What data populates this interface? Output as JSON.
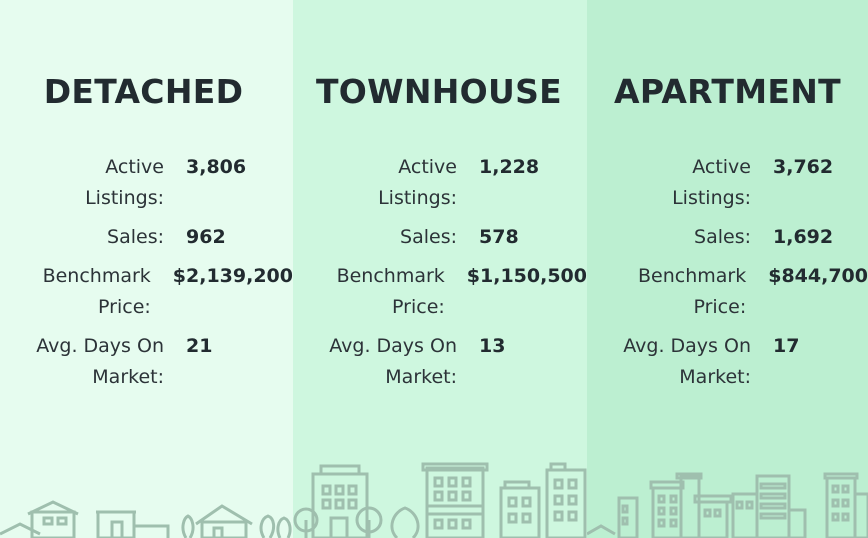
{
  "colors": {
    "detached_bg": "#e6fcef",
    "townhouse_bg": "#cef7df",
    "apartment_bg": "#bcefd1",
    "skyline_stroke": "#9fbfae"
  },
  "columns": [
    {
      "title": "DETACHED",
      "active_label_1": "Active",
      "active_label_2": "Listings:",
      "active_value": "3,806",
      "sales_label": "Sales:",
      "sales_value": "962",
      "bench_label_1": "Benchmark",
      "bench_label_2": "Price:",
      "bench_value": "$2,139,200",
      "days_label_1": "Avg. Days On",
      "days_label_2": "Market:",
      "days_value": "21",
      "illustration": "houses-skyline-icon"
    },
    {
      "title": "TOWNHOUSE",
      "active_label_1": "Active",
      "active_label_2": "Listings:",
      "active_value": "1,228",
      "sales_label": "Sales:",
      "sales_value": "578",
      "bench_label_1": "Benchmark",
      "bench_label_2": "Price:",
      "bench_value": "$1,150,500",
      "days_label_1": "Avg. Days On",
      "days_label_2": "Market:",
      "days_value": "13",
      "illustration": "townhouse-skyline-icon"
    },
    {
      "title": "APARTMENT",
      "active_label_1": "Active",
      "active_label_2": "Listings:",
      "active_value": "3,762",
      "sales_label": "Sales:",
      "sales_value": "1,692",
      "bench_label_1": "Benchmark",
      "bench_label_2": "Price:",
      "bench_value": "$844,700",
      "days_label_1": "Avg. Days On",
      "days_label_2": "Market:",
      "days_value": "17",
      "illustration": "apartment-skyline-icon"
    }
  ]
}
